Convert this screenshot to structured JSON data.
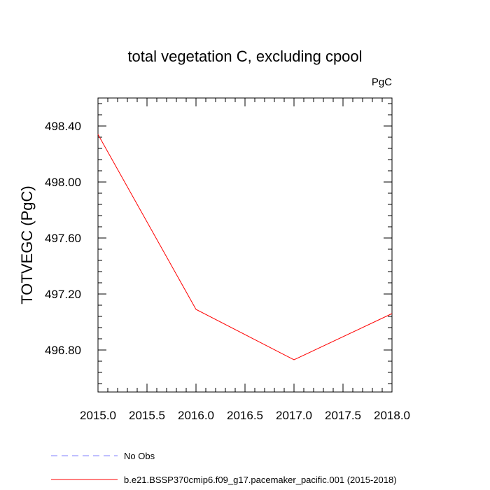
{
  "chart_data": {
    "type": "line",
    "title": "total vegetation C, excluding cpool",
    "units_label": "PgC",
    "xlabel": "",
    "ylabel": "TOTVEGC  (PgC)",
    "xlim": [
      2015.0,
      2018.0
    ],
    "ylim": [
      496.5,
      498.6
    ],
    "x_ticks": [
      2015.0,
      2015.5,
      2016.0,
      2016.5,
      2017.0,
      2017.5,
      2018.0
    ],
    "x_tick_labels": [
      "2015.0",
      "2015.5",
      "2016.0",
      "2016.5",
      "2017.0",
      "2017.5",
      "2018.0"
    ],
    "y_ticks": [
      496.8,
      497.2,
      497.6,
      498.0,
      498.4
    ],
    "y_tick_labels": [
      "496.80",
      "497.20",
      "497.60",
      "498.00",
      "498.40"
    ],
    "grid": false,
    "series": [
      {
        "name": "b.e21.BSSP370cmip6.f09_g17.pacemaker_pacific.001 (2015-2018)",
        "color": "#ff0000",
        "style": "solid",
        "x": [
          2015.0,
          2016.0,
          2017.0,
          2018.0
        ],
        "y": [
          498.34,
          497.09,
          496.73,
          497.06
        ]
      }
    ],
    "legend": [
      {
        "label": "No Obs",
        "color": "#7f7fff",
        "style": "dashed"
      },
      {
        "label": "b.e21.BSSP370cmip6.f09_g17.pacemaker_pacific.001 (2015-2018)",
        "color": "#ff0000",
        "style": "solid"
      }
    ]
  }
}
